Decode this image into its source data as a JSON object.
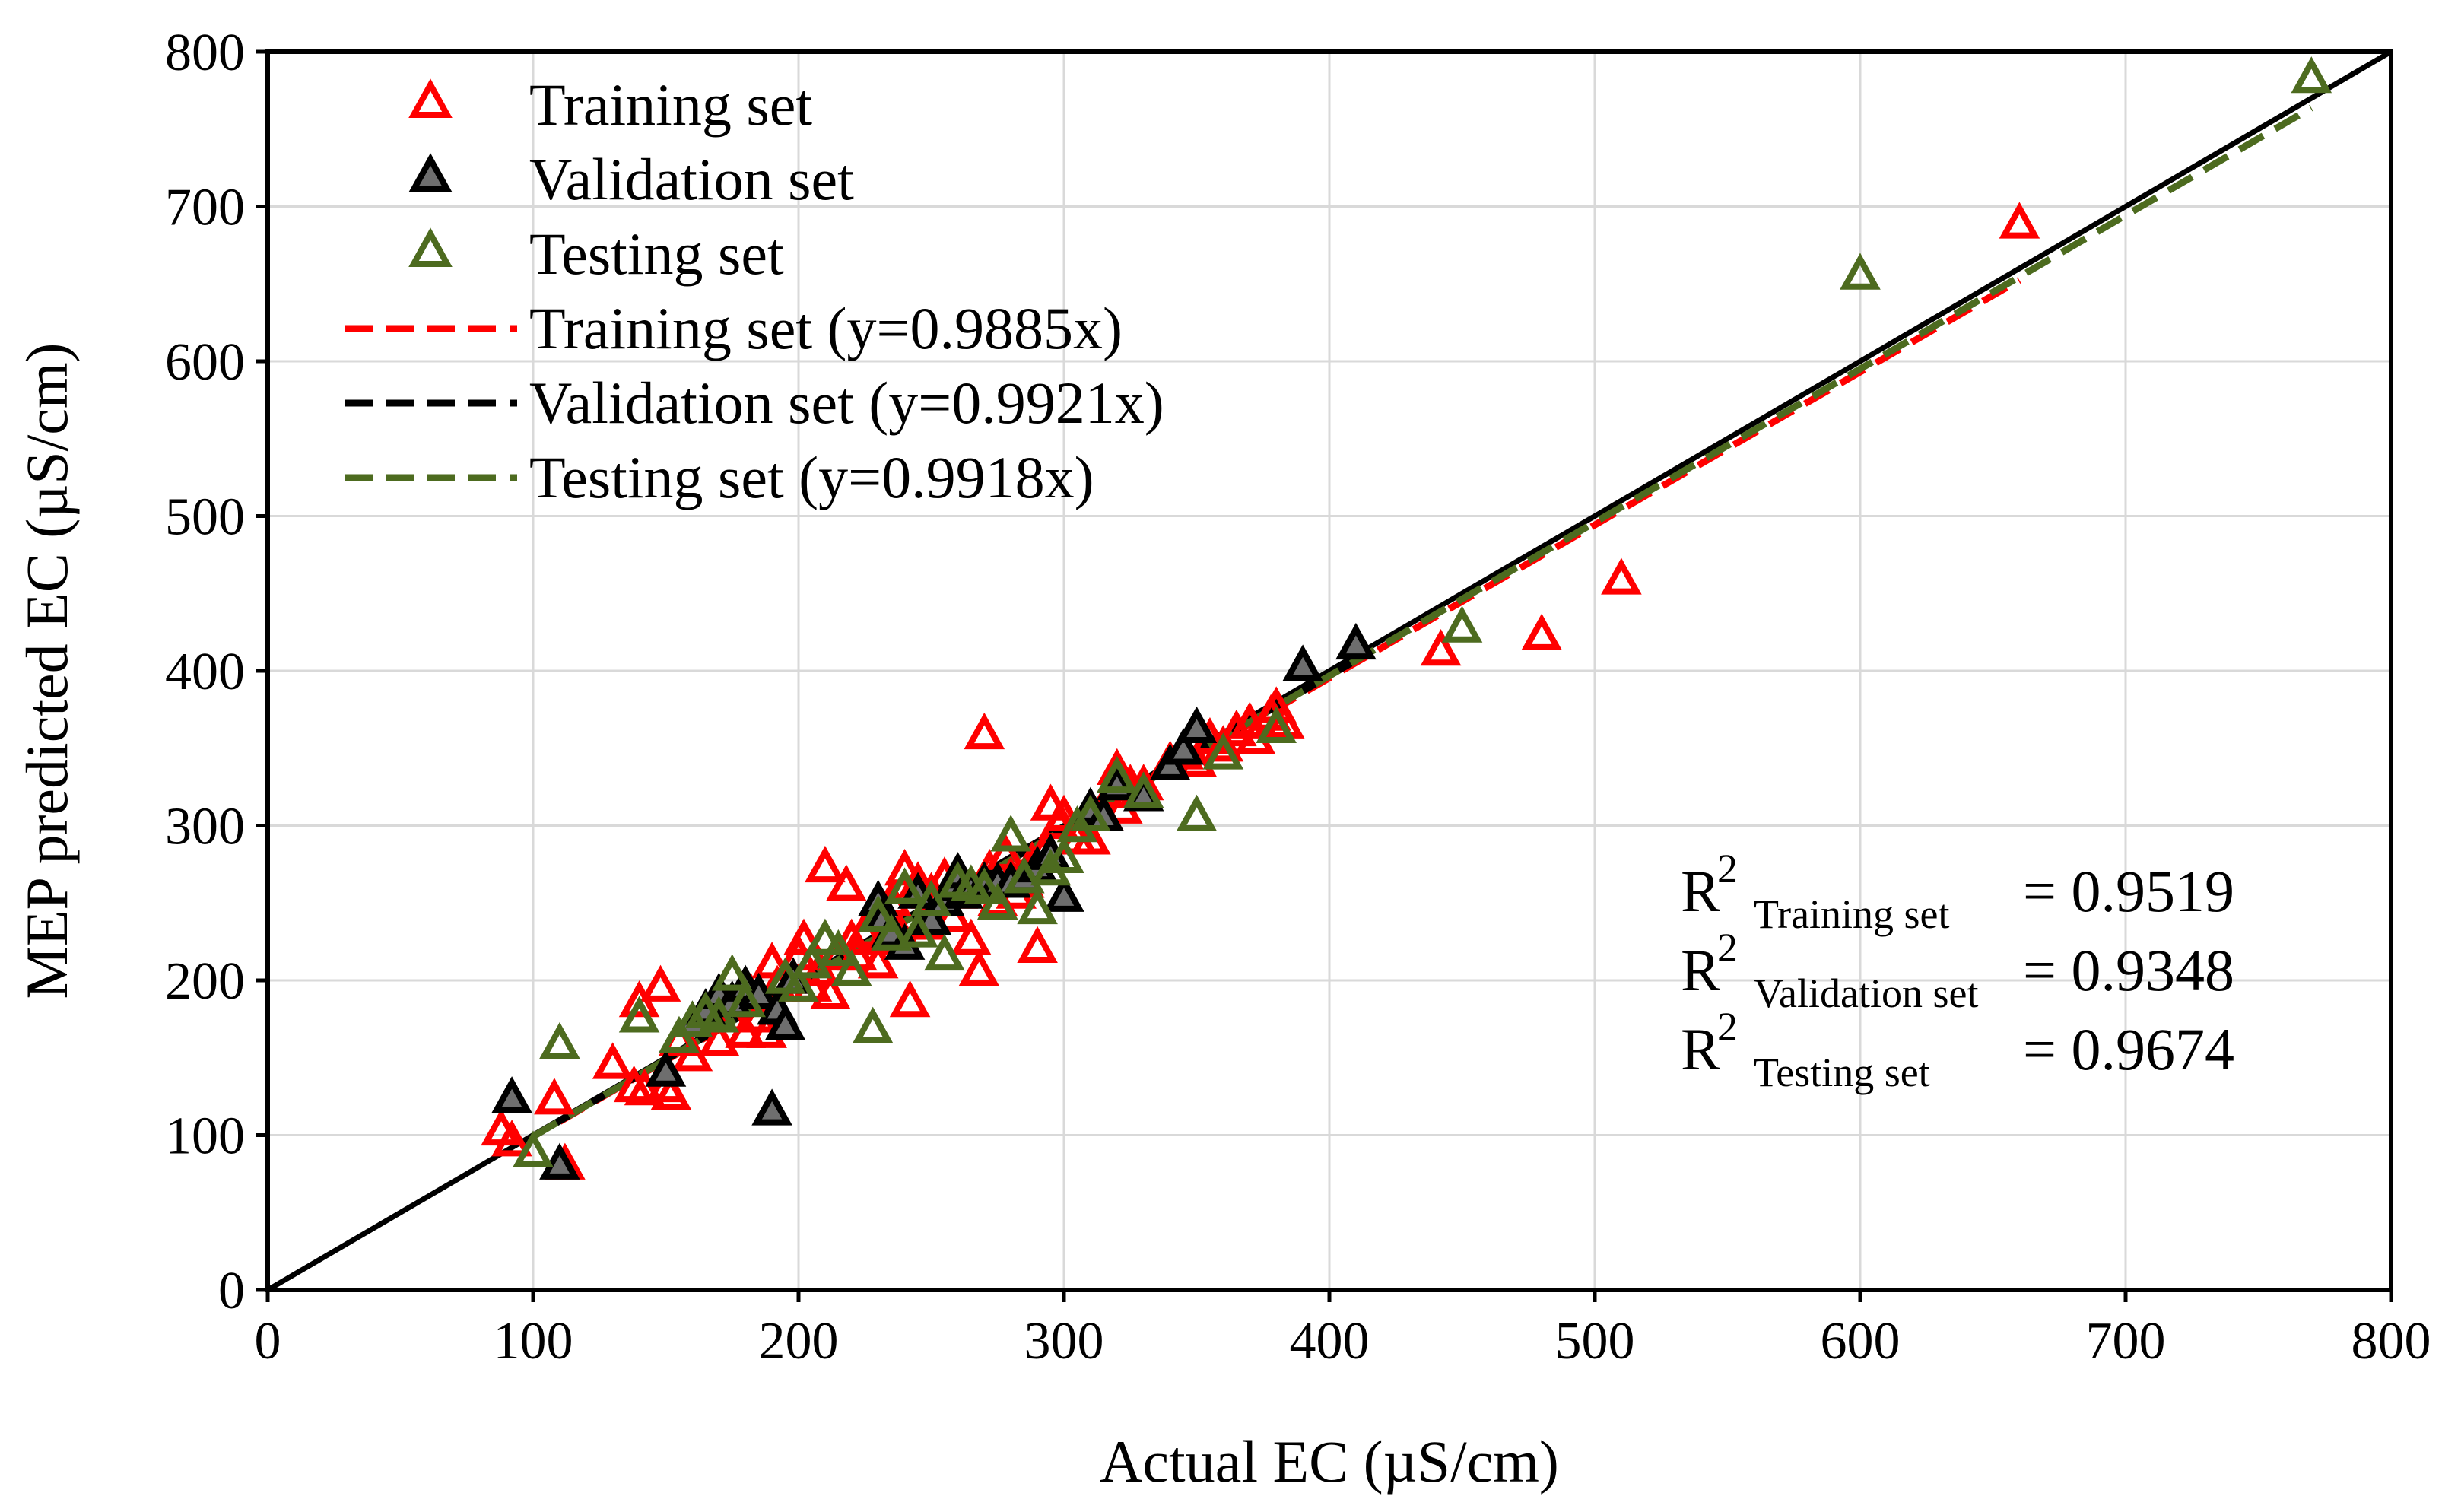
{
  "chart_data": {
    "type": "scatter",
    "xlabel": "Actual EC (µS/cm)",
    "ylabel": "MEP predicted EC (µS/cm)",
    "xlim": [
      0,
      800
    ],
    "ylim": [
      0,
      800
    ],
    "xticks": [
      "0",
      "100",
      "200",
      "300",
      "400",
      "500",
      "600",
      "700",
      "800"
    ],
    "yticks": [
      "0",
      "100",
      "200",
      "300",
      "400",
      "500",
      "600",
      "700",
      "800"
    ],
    "grid": true,
    "legend_position": "top-left",
    "series": [
      {
        "name": "Training set",
        "color": "#ff0000",
        "marker": "triangle-open",
        "points": [
          [
            88,
            102
          ],
          [
            92,
            95
          ],
          [
            108,
            122
          ],
          [
            112,
            80
          ],
          [
            130,
            145
          ],
          [
            138,
            130
          ],
          [
            140,
            185
          ],
          [
            142,
            128
          ],
          [
            148,
            195
          ],
          [
            150,
            130
          ],
          [
            152,
            125
          ],
          [
            155,
            160
          ],
          [
            160,
            150
          ],
          [
            165,
            175
          ],
          [
            170,
            160
          ],
          [
            175,
            175
          ],
          [
            180,
            165
          ],
          [
            182,
            190
          ],
          [
            185,
            175
          ],
          [
            188,
            165
          ],
          [
            190,
            210
          ],
          [
            192,
            195
          ],
          [
            198,
            200
          ],
          [
            200,
            215
          ],
          [
            202,
            225
          ],
          [
            205,
            195
          ],
          [
            208,
            205
          ],
          [
            210,
            272
          ],
          [
            212,
            190
          ],
          [
            215,
            215
          ],
          [
            218,
            260
          ],
          [
            220,
            225
          ],
          [
            222,
            215
          ],
          [
            225,
            230
          ],
          [
            228,
            240
          ],
          [
            230,
            210
          ],
          [
            232,
            225
          ],
          [
            235,
            250
          ],
          [
            238,
            230
          ],
          [
            240,
            270
          ],
          [
            242,
            185
          ],
          [
            245,
            262
          ],
          [
            248,
            235
          ],
          [
            250,
            255
          ],
          [
            252,
            250
          ],
          [
            255,
            265
          ],
          [
            258,
            240
          ],
          [
            260,
            255
          ],
          [
            262,
            260
          ],
          [
            265,
            225
          ],
          [
            268,
            205
          ],
          [
            270,
            358
          ],
          [
            272,
            270
          ],
          [
            275,
            250
          ],
          [
            278,
            280
          ],
          [
            280,
            265
          ],
          [
            282,
            255
          ],
          [
            285,
            262
          ],
          [
            288,
            275
          ],
          [
            290,
            220
          ],
          [
            292,
            280
          ],
          [
            295,
            312
          ],
          [
            298,
            300
          ],
          [
            300,
            305
          ],
          [
            305,
            290
          ],
          [
            310,
            290
          ],
          [
            315,
            305
          ],
          [
            318,
            320
          ],
          [
            320,
            335
          ],
          [
            322,
            310
          ],
          [
            325,
            325
          ],
          [
            330,
            325
          ],
          [
            340,
            340
          ],
          [
            345,
            345
          ],
          [
            350,
            340
          ],
          [
            355,
            355
          ],
          [
            360,
            350
          ],
          [
            365,
            360
          ],
          [
            370,
            365
          ],
          [
            372,
            355
          ],
          [
            378,
            370
          ],
          [
            380,
            375
          ],
          [
            383,
            365
          ],
          [
            442,
            412
          ],
          [
            480,
            422
          ],
          [
            510,
            458
          ],
          [
            660,
            688
          ]
        ]
      },
      {
        "name": "Validation set",
        "color": "#000000",
        "marker": "triangle-filled-gray",
        "points": [
          [
            92,
            123
          ],
          [
            110,
            80
          ],
          [
            150,
            140
          ],
          [
            160,
            172
          ],
          [
            165,
            180
          ],
          [
            170,
            190
          ],
          [
            175,
            185
          ],
          [
            180,
            195
          ],
          [
            185,
            190
          ],
          [
            190,
            115
          ],
          [
            192,
            180
          ],
          [
            195,
            170
          ],
          [
            198,
            200
          ],
          [
            230,
            250
          ],
          [
            232,
            240
          ],
          [
            235,
            230
          ],
          [
            240,
            222
          ],
          [
            245,
            255
          ],
          [
            250,
            238
          ],
          [
            255,
            250
          ],
          [
            258,
            260
          ],
          [
            260,
            268
          ],
          [
            262,
            255
          ],
          [
            265,
            258
          ],
          [
            270,
            262
          ],
          [
            275,
            262
          ],
          [
            280,
            262
          ],
          [
            285,
            265
          ],
          [
            290,
            272
          ],
          [
            295,
            280
          ],
          [
            300,
            253
          ],
          [
            310,
            310
          ],
          [
            315,
            305
          ],
          [
            320,
            325
          ],
          [
            330,
            318
          ],
          [
            340,
            338
          ],
          [
            345,
            348
          ],
          [
            350,
            362
          ],
          [
            390,
            402
          ],
          [
            410,
            416
          ]
        ]
      },
      {
        "name": "Testing set",
        "color": "#4d6b1f",
        "marker": "triangle-open",
        "points": [
          [
            100,
            88
          ],
          [
            110,
            158
          ],
          [
            140,
            175
          ],
          [
            155,
            162
          ],
          [
            160,
            172
          ],
          [
            165,
            178
          ],
          [
            170,
            175
          ],
          [
            175,
            202
          ],
          [
            180,
            185
          ],
          [
            195,
            200
          ],
          [
            200,
            195
          ],
          [
            205,
            210
          ],
          [
            210,
            225
          ],
          [
            215,
            218
          ],
          [
            220,
            205
          ],
          [
            228,
            168
          ],
          [
            230,
            240
          ],
          [
            235,
            228
          ],
          [
            240,
            258
          ],
          [
            245,
            230
          ],
          [
            250,
            250
          ],
          [
            255,
            215
          ],
          [
            260,
            262
          ],
          [
            265,
            260
          ],
          [
            270,
            258
          ],
          [
            275,
            248
          ],
          [
            280,
            292
          ],
          [
            285,
            265
          ],
          [
            290,
            245
          ],
          [
            295,
            270
          ],
          [
            300,
            278
          ],
          [
            305,
            298
          ],
          [
            310,
            305
          ],
          [
            320,
            330
          ],
          [
            330,
            320
          ],
          [
            350,
            305
          ],
          [
            360,
            345
          ],
          [
            380,
            362
          ],
          [
            450,
            427
          ],
          [
            600,
            655
          ],
          [
            770,
            782
          ]
        ]
      }
    ],
    "fit_lines": [
      {
        "name": "Training set (y=0.9885x)",
        "slope": 0.9885,
        "color": "#ff0000",
        "x_range": [
          110,
          660
        ]
      },
      {
        "name": "Validation set (y=0.9921x)",
        "slope": 0.9921,
        "color": "#000000",
        "x_range": [
          95,
          410
        ]
      },
      {
        "name": "Testing set (y=0.9918x)",
        "slope": 0.9918,
        "color": "#4d6b1f",
        "x_range": [
          100,
          770
        ]
      }
    ],
    "reference_line": {
      "slope": 1,
      "color": "#000000",
      "x_range": [
        0,
        800
      ]
    },
    "annotations": [
      {
        "label_main": "R",
        "label_sup": "2",
        "label_sub": "Training set",
        "value": "= 0.9519"
      },
      {
        "label_main": "R",
        "label_sup": "2",
        "label_sub": "Validation set",
        "value": "= 0.9348"
      },
      {
        "label_main": "R",
        "label_sup": "2",
        "label_sub": "Testing set",
        "value": "= 0.9674"
      }
    ]
  }
}
